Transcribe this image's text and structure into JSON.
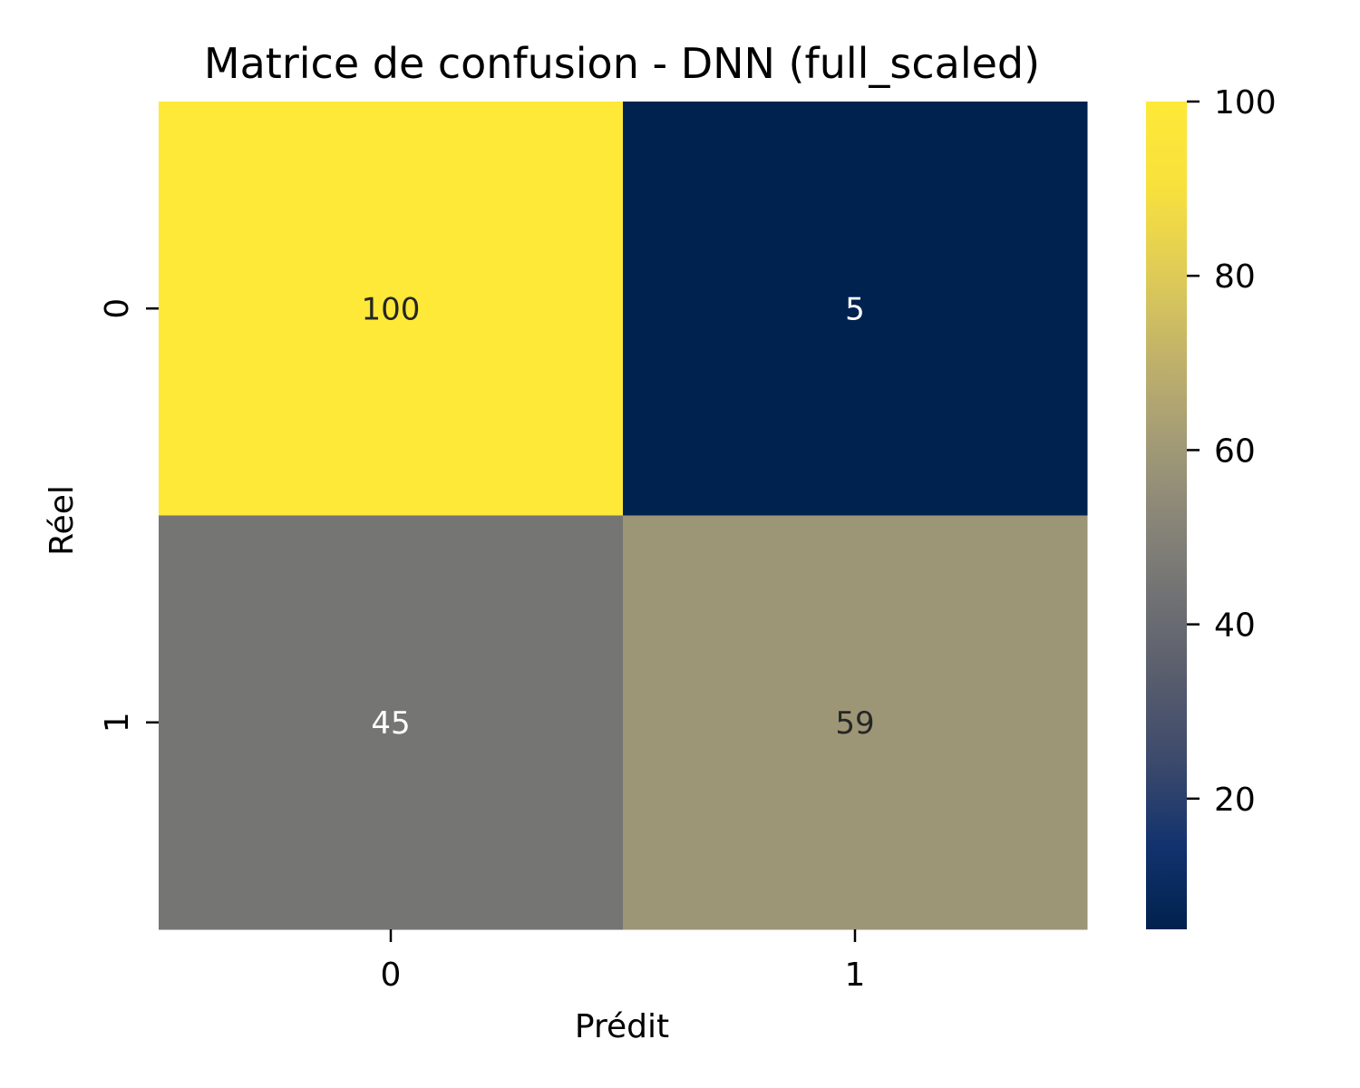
{
  "chart_data": {
    "type": "heatmap",
    "title": "Matrice de confusion - DNN (full_scaled)",
    "xlabel": "Prédit",
    "ylabel": "Réel",
    "x_categories": [
      "0",
      "1"
    ],
    "y_categories": [
      "0",
      "1"
    ],
    "matrix": [
      [
        100,
        5
      ],
      [
        45,
        59
      ]
    ],
    "annotations": [
      [
        "100",
        "5"
      ],
      [
        "45",
        "59"
      ]
    ],
    "colormap": "cividis",
    "vmin": 5,
    "vmax": 100,
    "colorbar_ticks": [
      20,
      40,
      60,
      80,
      100
    ],
    "colorbar_tick_labels": [
      "20",
      "40",
      "60",
      "80",
      "100"
    ],
    "annotation_colors": {
      "dark_text": "#262626",
      "light_text": "#ffffff"
    }
  }
}
